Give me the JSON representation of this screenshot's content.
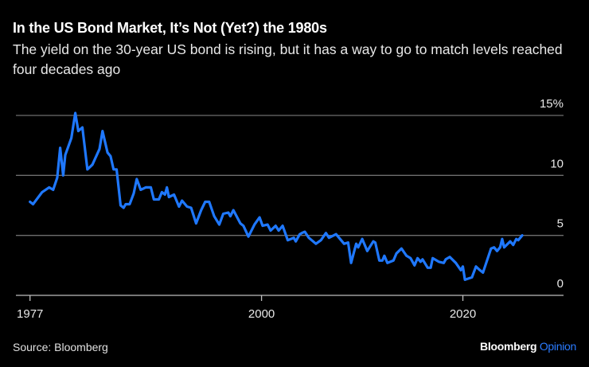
{
  "title": "In the US Bond Market, It’s Not (Yet?) the 1980s",
  "subtitle": "The yield on the 30-year US bond is rising, but it has a way to go to match levels reached four decades ago",
  "source": "Source: Bloomberg",
  "logo": {
    "brand": "Bloomberg",
    "section": "Opinion"
  },
  "colors": {
    "line": "#1f78ff",
    "background": "#000000",
    "grid": "#6e6e6e",
    "accent": "#2b7bff"
  },
  "chart_data": {
    "type": "line",
    "title": "In the US Bond Market, It’s Not (Yet?) the 1980s",
    "xlabel": "",
    "ylabel": "",
    "xlim": [
      1975.6,
      2030
    ],
    "ylim": [
      0,
      15
    ],
    "grid": true,
    "y_ticks": [
      {
        "value": 15,
        "label": "15%"
      },
      {
        "value": 10,
        "label": "10"
      },
      {
        "value": 5,
        "label": "5"
      },
      {
        "value": 0,
        "label": "0"
      }
    ],
    "x_ticks": [
      {
        "value": 1977,
        "label": "1977"
      },
      {
        "value": 2000,
        "label": "2000"
      },
      {
        "value": 2020,
        "label": "2020"
      }
    ],
    "series": [
      {
        "x": [
          1977.0,
          1977.3,
          1978.2,
          1978.9,
          1979.3,
          1979.7,
          1980.0,
          1980.3,
          1980.5,
          1981.1,
          1981.5,
          1981.8,
          1982.2,
          1982.7,
          1983.2,
          1983.9,
          1984.2,
          1984.7,
          1985.0,
          1985.3,
          1985.6,
          1986.0,
          1986.3,
          1986.5,
          1986.9,
          1987.3,
          1987.6,
          1988.0,
          1988.5,
          1989.0,
          1989.3,
          1989.8,
          1990.1,
          1990.4,
          1990.6,
          1990.8,
          1991.3,
          1991.8,
          1992.1,
          1992.6,
          1993.0,
          1993.5,
          1994.0,
          1994.4,
          1994.8,
          1995.3,
          1995.8,
          1996.2,
          1996.7,
          1996.9,
          1997.2,
          1997.9,
          1998.2,
          1998.7,
          1999.3,
          1999.8,
          2000.1,
          2000.6,
          2000.9,
          2001.4,
          2001.7,
          2002.1,
          2002.6,
          2003.2,
          2003.4,
          2003.8,
          2004.0,
          2004.3,
          2004.7,
          2005.4,
          2005.9,
          2006.4,
          2006.7,
          2007.4,
          2008.2,
          2008.6,
          2008.9,
          2009.4,
          2009.6,
          2010.0,
          2010.5,
          2011.1,
          2011.3,
          2011.7,
          2012.0,
          2012.2,
          2012.5,
          2013.1,
          2013.4,
          2013.9,
          2014.4,
          2014.8,
          2015.2,
          2015.5,
          2015.8,
          2016.0,
          2016.5,
          2016.8,
          2017.0,
          2017.6,
          2018.1,
          2018.3,
          2018.7,
          2019.3,
          2019.8,
          2020.0,
          2020.2,
          2020.9,
          2021.3,
          2021.7,
          2022.0,
          2022.8,
          2023.1,
          2023.4,
          2023.7,
          2023.9,
          2024.1,
          2024.7,
          2025.0,
          2025.3,
          2025.5,
          2025.9
        ],
        "y": [
          7.8,
          7.6,
          8.6,
          9.0,
          8.8,
          9.8,
          12.3,
          10.0,
          11.7,
          13.1,
          15.2,
          13.7,
          14.0,
          10.5,
          10.9,
          12.2,
          13.7,
          11.9,
          11.6,
          10.5,
          10.5,
          7.5,
          7.3,
          7.6,
          7.6,
          8.5,
          9.7,
          8.8,
          9.0,
          9.0,
          8.0,
          8.0,
          8.6,
          8.4,
          9.0,
          8.2,
          8.4,
          7.4,
          7.9,
          7.4,
          7.3,
          6.0,
          7.1,
          7.8,
          7.8,
          6.6,
          5.9,
          6.8,
          6.9,
          6.6,
          7.1,
          6.0,
          5.8,
          4.9,
          5.9,
          6.5,
          5.8,
          5.9,
          5.4,
          5.8,
          5.4,
          5.8,
          4.6,
          4.8,
          4.5,
          5.1,
          5.2,
          5.3,
          4.8,
          4.3,
          4.6,
          5.2,
          4.8,
          5.1,
          4.3,
          4.4,
          2.7,
          4.3,
          4.0,
          4.7,
          3.7,
          4.5,
          4.4,
          2.9,
          2.9,
          3.3,
          2.7,
          2.9,
          3.5,
          3.9,
          3.3,
          3.1,
          2.5,
          3.1,
          2.8,
          3.0,
          2.3,
          2.3,
          3.1,
          2.8,
          2.7,
          3.0,
          3.2,
          2.7,
          2.1,
          2.4,
          1.3,
          1.5,
          2.4,
          2.1,
          1.9,
          3.9,
          4.0,
          3.7,
          4.0,
          4.7,
          4.0,
          4.5,
          4.2,
          4.7,
          4.6,
          5.0
        ]
      }
    ]
  }
}
